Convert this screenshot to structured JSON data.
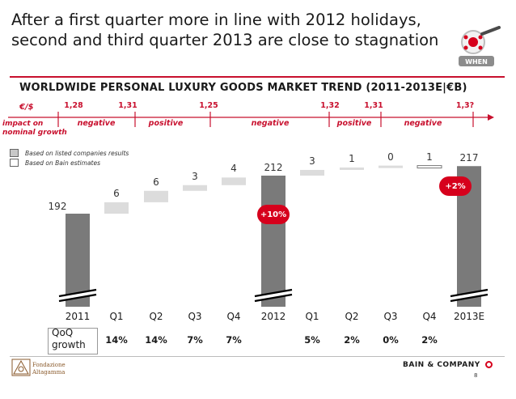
{
  "title_lines": [
    "After a first quarter more in line with 2012 holidays,",
    "second and third quarter 2013 are close to stagnation"
  ],
  "when_label": "WHEN",
  "subtitle": "WORLDWIDE PERSONAL LUXURY GOODS MARKET TREND (2011-2013E|€B)",
  "eur_usd_label": "€/$",
  "impact_label_lines": [
    "impact on",
    "nominal growth"
  ],
  "rates": [
    "1,28",
    "1,31",
    "1,25",
    "1,32",
    "1,31",
    "1,3?"
  ],
  "periods": [
    "negative",
    "positive",
    "negative",
    "positive",
    "negative"
  ],
  "legend": [
    {
      "label": "Based on listed companies results",
      "color": "#c8c8c8"
    },
    {
      "label": "Based on Bain estimates",
      "color": "#ffffff"
    }
  ],
  "colors": {
    "accent": "#c8102e",
    "total_bar": "#7a7a7a",
    "listed_bar": "#dcdcdc",
    "estimate_bar": "#ffffff",
    "badge": "#d6001c"
  },
  "chart_data": {
    "type": "bar",
    "subtype": "waterfall",
    "unit": "€B",
    "categories": [
      "2011",
      "Q1",
      "Q2",
      "Q3",
      "Q4",
      "2012",
      "Q1",
      "Q2",
      "Q3",
      "Q4",
      "2013E"
    ],
    "bars": [
      {
        "category": "2011",
        "kind": "total",
        "value": 192,
        "label": "192"
      },
      {
        "category": "Q1",
        "kind": "increment",
        "value": 6,
        "label": "6",
        "source": "listed"
      },
      {
        "category": "Q2",
        "kind": "increment",
        "value": 6,
        "label": "6",
        "source": "listed"
      },
      {
        "category": "Q3",
        "kind": "increment",
        "value": 3,
        "label": "3",
        "source": "listed"
      },
      {
        "category": "Q4",
        "kind": "increment",
        "value": 4,
        "label": "4",
        "source": "listed"
      },
      {
        "category": "2012",
        "kind": "total",
        "value": 212,
        "label": "212"
      },
      {
        "category": "Q1",
        "kind": "increment",
        "value": 3,
        "label": "3",
        "source": "listed"
      },
      {
        "category": "Q2",
        "kind": "increment",
        "value": 1,
        "label": "1",
        "source": "listed"
      },
      {
        "category": "Q3",
        "kind": "increment",
        "value": 0,
        "label": "0",
        "source": "listed"
      },
      {
        "category": "Q4",
        "kind": "increment",
        "value": 1,
        "label": "1",
        "source": "estimate"
      },
      {
        "category": "2013E",
        "kind": "total",
        "value": 217,
        "label": "217"
      }
    ],
    "growth_badges": [
      {
        "after": "2012",
        "label": "+10%"
      },
      {
        "after": "2013E",
        "label": "+2%"
      }
    ],
    "qoq_label_lines": [
      "QoQ",
      "growth"
    ],
    "qoq_growth": [
      "14%",
      "14%",
      "7%",
      "7%",
      "",
      "5%",
      "2%",
      "0%",
      "2%"
    ],
    "axis_break": true
  },
  "footer": {
    "foundation_lines": [
      "Fondazione",
      "Altagamma"
    ],
    "bain_logo_text": "BAIN & COMPANY",
    "page_number": "8"
  }
}
